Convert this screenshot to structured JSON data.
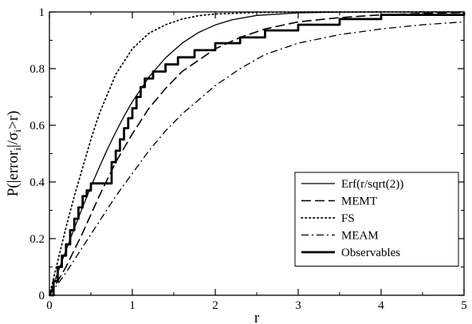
{
  "chart_data": {
    "type": "line",
    "xlabel": "r",
    "ylabel": "P(|error_i|/σ_i>r)",
    "ylabel_parts": {
      "before": "P(|error",
      "sub1": "i",
      "middle": "|/σ",
      "sub2": "i",
      "after": ">r)"
    },
    "xlim": [
      0,
      5
    ],
    "ylim": [
      0,
      1
    ],
    "x_ticks": [
      "0",
      "1",
      "2",
      "3",
      "4",
      "5"
    ],
    "y_ticks": [
      "0",
      "0.2",
      "0.4",
      "0.6",
      "0.8",
      "1"
    ],
    "grid": false,
    "legend_position": "lower-right",
    "series": [
      {
        "name": "Erf(r/sqrt(2))",
        "style": "solid-thin",
        "x": [
          0,
          0.1,
          0.2,
          0.3,
          0.4,
          0.5,
          0.6,
          0.7,
          0.8,
          0.9,
          1.0,
          1.2,
          1.4,
          1.6,
          1.8,
          2.0,
          2.2,
          2.5,
          3.0,
          3.5,
          4.0,
          5.0
        ],
        "y": [
          0,
          0.08,
          0.159,
          0.236,
          0.311,
          0.383,
          0.451,
          0.516,
          0.576,
          0.632,
          0.683,
          0.77,
          0.838,
          0.89,
          0.928,
          0.954,
          0.972,
          0.988,
          0.997,
          0.9995,
          1.0,
          1.0
        ]
      },
      {
        "name": "MEMT",
        "style": "dashed",
        "x": [
          0,
          0.2,
          0.4,
          0.6,
          0.8,
          1.0,
          1.2,
          1.4,
          1.6,
          1.8,
          2.0,
          2.3,
          2.6,
          3.0,
          3.5,
          4.0,
          4.5,
          5.0
        ],
        "y": [
          0,
          0.1,
          0.22,
          0.35,
          0.47,
          0.57,
          0.66,
          0.73,
          0.79,
          0.83,
          0.87,
          0.91,
          0.94,
          0.965,
          0.98,
          0.99,
          0.995,
          0.998
        ]
      },
      {
        "name": "FS",
        "style": "dotted",
        "x": [
          0,
          0.1,
          0.2,
          0.3,
          0.4,
          0.5,
          0.6,
          0.7,
          0.8,
          1.0,
          1.2,
          1.4,
          1.6,
          1.8,
          2.0,
          2.5,
          3.0,
          5.0
        ],
        "y": [
          0,
          0.12,
          0.24,
          0.35,
          0.45,
          0.55,
          0.64,
          0.71,
          0.78,
          0.87,
          0.925,
          0.955,
          0.975,
          0.987,
          0.993,
          0.998,
          1.0,
          1.0
        ]
      },
      {
        "name": "MEAM",
        "style": "dash-dot",
        "x": [
          0,
          0.2,
          0.4,
          0.6,
          0.8,
          1.0,
          1.2,
          1.4,
          1.6,
          1.8,
          2.0,
          2.3,
          2.6,
          3.0,
          3.5,
          4.0,
          4.5,
          5.0
        ],
        "y": [
          0,
          0.08,
          0.17,
          0.26,
          0.35,
          0.43,
          0.51,
          0.58,
          0.64,
          0.69,
          0.74,
          0.8,
          0.85,
          0.89,
          0.92,
          0.94,
          0.955,
          0.965
        ]
      },
      {
        "name": "Observables",
        "style": "step-thick",
        "x": [
          0,
          0.05,
          0.1,
          0.15,
          0.2,
          0.25,
          0.3,
          0.35,
          0.4,
          0.45,
          0.5,
          0.75,
          0.8,
          0.85,
          0.9,
          0.95,
          1.0,
          1.05,
          1.1,
          1.15,
          1.25,
          1.4,
          1.55,
          1.75,
          2.0,
          2.3,
          2.6,
          3.0,
          3.5,
          4.0,
          5.0
        ],
        "y": [
          0,
          0.05,
          0.1,
          0.14,
          0.18,
          0.23,
          0.27,
          0.31,
          0.35,
          0.37,
          0.395,
          0.47,
          0.51,
          0.55,
          0.59,
          0.625,
          0.66,
          0.7,
          0.735,
          0.765,
          0.79,
          0.815,
          0.84,
          0.865,
          0.89,
          0.91,
          0.935,
          0.955,
          0.975,
          0.99,
          1.0
        ]
      }
    ]
  }
}
